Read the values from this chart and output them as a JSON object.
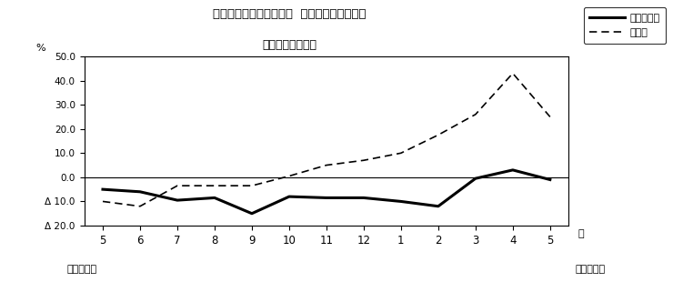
{
  "title_line1": "第２図　所定外労働時間  対前年同月比の推移",
  "title_line2": "（規模５人以上）",
  "xlabel_right": "月",
  "ylabel": "%",
  "x_labels": [
    "5",
    "6",
    "7",
    "8",
    "9",
    "10",
    "11",
    "12",
    "1",
    "2",
    "3",
    "4",
    "5"
  ],
  "x_values": [
    0,
    1,
    2,
    3,
    4,
    5,
    6,
    7,
    8,
    9,
    10,
    11,
    12
  ],
  "ylim": [
    -20.0,
    50.0
  ],
  "yticks": [
    -20.0,
    -10.0,
    0.0,
    10.0,
    20.0,
    30.0,
    40.0,
    50.0
  ],
  "ytick_labels": [
    "Δ 20.0",
    "Δ 10.0",
    "0.0",
    "10.0",
    "20.0",
    "30.0",
    "40.0",
    "50.0"
  ],
  "series1_name": "調査産業計",
  "series1_values": [
    -5.0,
    -6.0,
    -9.5,
    -8.5,
    -15.0,
    -8.0,
    -8.5,
    -8.5,
    -10.0,
    -12.0,
    -0.5,
    3.0,
    -1.0
  ],
  "series2_name": "製造業",
  "series2_values": [
    -10.0,
    -12.0,
    -3.5,
    -3.5,
    -3.5,
    0.5,
    5.0,
    7.0,
    10.0,
    17.5,
    26.0,
    43.0,
    25.0
  ],
  "series1_color": "#000000",
  "series2_color": "#000000",
  "bg_color": "#ffffff",
  "border_color": "#000000",
  "label_heisei23": "平成２３年",
  "label_heisei24": "平成２４年",
  "legend_entries": [
    "調査産業計",
    "製造業"
  ]
}
